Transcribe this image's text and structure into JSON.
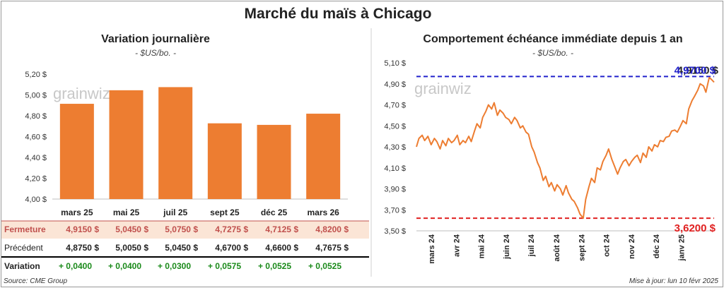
{
  "title": "Marché du maïs à Chicago",
  "left": {
    "title": "Variation journalière",
    "subtitle": "- $US/bo. -",
    "watermark": "grainwiz"
  },
  "right": {
    "title": "Comportement échéance immédiate depuis 1 an",
    "subtitle": "- $US/bo. -",
    "watermark": "grainwiz"
  },
  "table": {
    "row_labels": [
      "Fermeture",
      "Précédent",
      "Variation"
    ],
    "fermeture": [
      "4,9150  $",
      "5,0450  $",
      "5,0750  $",
      "4,7275  $",
      "4,7125  $",
      "4,8200  $"
    ],
    "precedent": [
      "4,8750  $",
      "5,0050  $",
      "5,0450  $",
      "4,6700  $",
      "4,6600  $",
      "4,7675  $"
    ],
    "variation": [
      "+ 0,0400",
      "+ 0,0400",
      "+ 0,0300",
      "+ 0,0575",
      "+ 0,0525",
      "+ 0,0525"
    ]
  },
  "footer": {
    "source": "Source: CME Group",
    "updated": "Mise à jour: lun 10 févr 2025"
  },
  "colors": {
    "bar": "#ed7d31",
    "line": "#ed7d31",
    "max_line": "#2222cc",
    "min_line": "#e02020",
    "fermeture_bg": "#fbe5d6",
    "variation_text": "#1a8a1a",
    "label_text": "#c0504d"
  },
  "chart_data": [
    {
      "type": "bar",
      "title": "Variation journalière",
      "subtitle": "- $US/bo. -",
      "categories": [
        "mars 25",
        "mai 25",
        "juil 25",
        "sept 25",
        "déc 25",
        "mars 26"
      ],
      "values": [
        4.915,
        5.045,
        5.075,
        4.7275,
        4.7125,
        4.82
      ],
      "ylim": [
        4.0,
        5.2
      ],
      "yticks": [
        "4,00 $",
        "4,20 $",
        "4,40 $",
        "4,60 $",
        "4,80 $",
        "5,00 $",
        "5,20 $"
      ],
      "ytick_values": [
        4.0,
        4.2,
        4.4,
        4.6,
        4.8,
        5.0,
        5.2
      ],
      "grid": false
    },
    {
      "type": "line",
      "title": "Comportement échéance immédiate depuis 1 an",
      "subtitle": "- $US/bo. -",
      "x_start": "2024-02-12",
      "x_end": "2025-02-10",
      "ylim": [
        3.5,
        5.1
      ],
      "yticks": [
        "3,50 $",
        "3,70 $",
        "3,90 $",
        "4,10 $",
        "4,30 $",
        "4,50 $",
        "4,70 $",
        "4,90 $",
        "5,10 $"
      ],
      "ytick_values": [
        3.5,
        3.7,
        3.9,
        4.1,
        4.3,
        4.5,
        4.7,
        4.9,
        5.1
      ],
      "xticks": [
        "mars 24",
        "avr 24",
        "mai 24",
        "juin 24",
        "juil 24",
        "août 24",
        "sept 24",
        "oct 24",
        "nov 24",
        "déc 24",
        "janv 25"
      ],
      "xtick_dates": [
        "2024-03-01",
        "2024-04-01",
        "2024-05-01",
        "2024-06-01",
        "2024-07-01",
        "2024-08-01",
        "2024-09-01",
        "2024-10-01",
        "2024-11-01",
        "2024-12-01",
        "2025-01-01"
      ],
      "max_value": 4.97,
      "max_label": "4,9700 $",
      "max_label_overlap": "4,9150 $",
      "min_value": 3.62,
      "min_label": "3,6200 $",
      "series": [
        {
          "x": [
            "2024-02-12",
            "2024-02-15",
            "2024-02-19",
            "2024-02-22",
            "2024-02-26",
            "2024-03-01",
            "2024-03-05",
            "2024-03-08",
            "2024-03-12",
            "2024-03-15",
            "2024-03-19",
            "2024-03-22",
            "2024-03-26",
            "2024-03-29",
            "2024-04-02",
            "2024-04-05",
            "2024-04-09",
            "2024-04-12",
            "2024-04-16",
            "2024-04-19",
            "2024-04-23",
            "2024-04-26",
            "2024-04-30",
            "2024-05-03",
            "2024-05-07",
            "2024-05-10",
            "2024-05-14",
            "2024-05-17",
            "2024-05-21",
            "2024-05-24",
            "2024-05-28",
            "2024-05-31",
            "2024-06-04",
            "2024-06-07",
            "2024-06-11",
            "2024-06-14",
            "2024-06-18",
            "2024-06-21",
            "2024-06-25",
            "2024-06-28",
            "2024-07-02",
            "2024-07-05",
            "2024-07-09",
            "2024-07-12",
            "2024-07-16",
            "2024-07-19",
            "2024-07-23",
            "2024-07-26",
            "2024-07-30",
            "2024-08-02",
            "2024-08-06",
            "2024-08-09",
            "2024-08-13",
            "2024-08-16",
            "2024-08-20",
            "2024-08-23",
            "2024-08-27",
            "2024-08-30",
            "2024-09-03",
            "2024-09-06",
            "2024-09-10",
            "2024-09-13",
            "2024-09-17",
            "2024-09-20",
            "2024-09-24",
            "2024-09-27",
            "2024-10-01",
            "2024-10-04",
            "2024-10-08",
            "2024-10-11",
            "2024-10-15",
            "2024-10-18",
            "2024-10-22",
            "2024-10-25",
            "2024-10-29",
            "2024-11-01",
            "2024-11-05",
            "2024-11-08",
            "2024-11-12",
            "2024-11-15",
            "2024-11-19",
            "2024-11-22",
            "2024-11-26",
            "2024-11-29",
            "2024-12-03",
            "2024-12-06",
            "2024-12-10",
            "2024-12-13",
            "2024-12-17",
            "2024-12-20",
            "2024-12-24",
            "2024-12-27",
            "2024-12-31",
            "2025-01-03",
            "2025-01-07",
            "2025-01-10",
            "2025-01-14",
            "2025-01-17",
            "2025-01-21",
            "2025-01-24",
            "2025-01-28",
            "2025-01-31",
            "2025-02-04",
            "2025-02-07",
            "2025-02-10"
          ],
          "y": [
            4.3,
            4.38,
            4.41,
            4.36,
            4.4,
            4.32,
            4.38,
            4.35,
            4.28,
            4.36,
            4.31,
            4.38,
            4.34,
            4.36,
            4.41,
            4.32,
            4.36,
            4.34,
            4.4,
            4.35,
            4.45,
            4.52,
            4.48,
            4.58,
            4.64,
            4.7,
            4.66,
            4.72,
            4.6,
            4.65,
            4.62,
            4.58,
            4.56,
            4.52,
            4.58,
            4.55,
            4.48,
            4.5,
            4.44,
            4.42,
            4.3,
            4.25,
            4.15,
            4.1,
            3.98,
            4.02,
            3.92,
            3.96,
            3.88,
            3.94,
            3.9,
            3.84,
            3.93,
            3.86,
            3.8,
            3.78,
            3.72,
            3.66,
            3.62,
            3.8,
            3.92,
            4.0,
            3.96,
            4.1,
            4.08,
            4.16,
            4.22,
            4.28,
            4.18,
            4.12,
            4.04,
            4.1,
            4.16,
            4.18,
            4.12,
            4.16,
            4.2,
            4.22,
            4.15,
            4.24,
            4.2,
            4.3,
            4.26,
            4.32,
            4.3,
            4.36,
            4.35,
            4.39,
            4.4,
            4.45,
            4.46,
            4.44,
            4.5,
            4.55,
            4.52,
            4.66,
            4.74,
            4.78,
            4.84,
            4.9,
            4.88,
            4.82,
            4.96,
            4.94,
            4.915
          ]
        }
      ],
      "grid": false
    }
  ]
}
